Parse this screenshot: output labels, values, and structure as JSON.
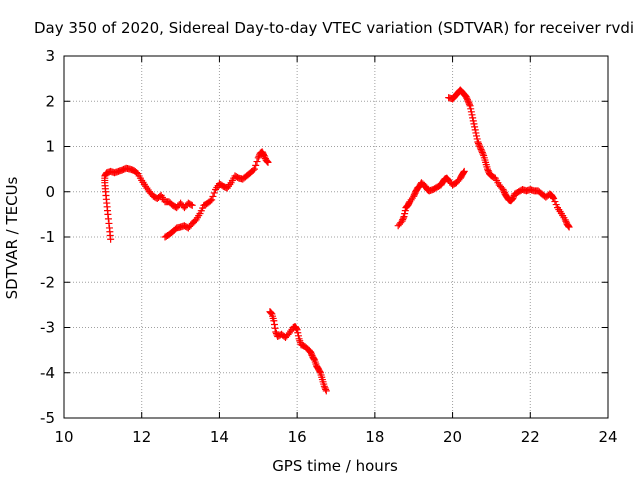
{
  "colors": {
    "series": "#ff0000",
    "grid": "#a0a0a0",
    "axis": "#000000"
  },
  "chart_data": {
    "type": "scatter",
    "title": "Day 350 of 2020, Sidereal Day-to-day VTEC variation (SDTVAR) for receiver rvdi",
    "xlabel": "GPS time / hours",
    "ylabel": "SDTVAR / TECUs",
    "xlim": [
      10,
      24
    ],
    "ylim": [
      -5,
      3
    ],
    "xticks": [
      10,
      12,
      14,
      16,
      18,
      20,
      22,
      24
    ],
    "yticks": [
      -5,
      -4,
      -3,
      -2,
      -1,
      0,
      1,
      2,
      3
    ],
    "grid": true,
    "marker": "plus",
    "series": [
      {
        "name": "SDTVAR",
        "segments": [
          [
            [
              11.2,
              -1.05
            ],
            [
              11.17,
              -0.8
            ],
            [
              11.13,
              -0.5
            ],
            [
              11.1,
              -0.25
            ],
            [
              11.07,
              0.0
            ],
            [
              11.05,
              0.2
            ],
            [
              11.05,
              0.35
            ],
            [
              11.1,
              0.42
            ],
            [
              11.2,
              0.45
            ],
            [
              11.3,
              0.42
            ],
            [
              11.4,
              0.45
            ],
            [
              11.5,
              0.48
            ],
            [
              11.6,
              0.52
            ],
            [
              11.7,
              0.5
            ],
            [
              11.8,
              0.47
            ],
            [
              11.9,
              0.4
            ],
            [
              12.0,
              0.25
            ],
            [
              12.1,
              0.12
            ],
            [
              12.2,
              0.0
            ],
            [
              12.3,
              -0.1
            ],
            [
              12.4,
              -0.15
            ],
            [
              12.5,
              -0.08
            ],
            [
              12.6,
              -0.22
            ],
            [
              12.7,
              -0.22
            ],
            [
              12.8,
              -0.3
            ],
            [
              12.9,
              -0.35
            ],
            [
              13.0,
              -0.25
            ],
            [
              13.1,
              -0.35
            ],
            [
              13.2,
              -0.25
            ],
            [
              13.3,
              -0.3
            ]
          ],
          [
            [
              12.6,
              -1.0
            ],
            [
              12.7,
              -0.95
            ],
            [
              12.8,
              -0.88
            ],
            [
              12.9,
              -0.8
            ],
            [
              13.0,
              -0.78
            ],
            [
              13.1,
              -0.75
            ],
            [
              13.2,
              -0.8
            ],
            [
              13.3,
              -0.7
            ],
            [
              13.4,
              -0.62
            ],
            [
              13.5,
              -0.48
            ],
            [
              13.6,
              -0.3
            ],
            [
              13.7,
              -0.25
            ],
            [
              13.8,
              -0.18
            ],
            [
              13.9,
              0.05
            ],
            [
              14.0,
              0.18
            ],
            [
              14.1,
              0.12
            ],
            [
              14.2,
              0.08
            ],
            [
              14.3,
              0.2
            ],
            [
              14.4,
              0.35
            ],
            [
              14.5,
              0.3
            ],
            [
              14.6,
              0.28
            ],
            [
              14.7,
              0.35
            ],
            [
              14.8,
              0.42
            ],
            [
              14.9,
              0.5
            ],
            [
              15.0,
              0.75
            ],
            [
              15.05,
              0.85
            ],
            [
              15.1,
              0.88
            ],
            [
              15.15,
              0.8
            ],
            [
              15.2,
              0.7
            ],
            [
              15.25,
              0.65
            ]
          ],
          [
            [
              15.3,
              -2.65
            ],
            [
              15.35,
              -2.7
            ],
            [
              15.4,
              -2.85
            ],
            [
              15.45,
              -3.1
            ],
            [
              15.5,
              -3.2
            ],
            [
              15.6,
              -3.15
            ],
            [
              15.7,
              -3.22
            ],
            [
              15.8,
              -3.12
            ],
            [
              15.9,
              -3.0
            ],
            [
              15.95,
              -2.98
            ],
            [
              16.0,
              -3.05
            ],
            [
              16.05,
              -3.25
            ],
            [
              16.1,
              -3.38
            ],
            [
              16.2,
              -3.42
            ],
            [
              16.3,
              -3.5
            ],
            [
              16.35,
              -3.55
            ],
            [
              16.4,
              -3.65
            ],
            [
              16.45,
              -3.72
            ],
            [
              16.5,
              -3.85
            ],
            [
              16.55,
              -3.92
            ],
            [
              16.6,
              -4.0
            ],
            [
              16.65,
              -4.15
            ],
            [
              16.7,
              -4.3
            ],
            [
              16.75,
              -4.4
            ]
          ],
          [
            [
              18.6,
              -0.75
            ],
            [
              18.7,
              -0.65
            ],
            [
              18.75,
              -0.55
            ],
            [
              18.8,
              -0.35
            ],
            [
              18.85,
              -0.3
            ],
            [
              18.9,
              -0.22
            ],
            [
              19.0,
              -0.1
            ],
            [
              19.05,
              0.0
            ],
            [
              19.1,
              0.08
            ],
            [
              19.15,
              0.12
            ],
            [
              19.2,
              0.2
            ],
            [
              19.3,
              0.12
            ],
            [
              19.35,
              0.05
            ],
            [
              19.4,
              0.02
            ],
            [
              19.5,
              0.05
            ],
            [
              19.6,
              0.1
            ],
            [
              19.7,
              0.15
            ],
            [
              19.75,
              0.22
            ],
            [
              19.8,
              0.28
            ],
            [
              19.85,
              0.3
            ],
            [
              19.9,
              0.25
            ],
            [
              20.0,
              0.15
            ],
            [
              20.1,
              0.2
            ],
            [
              20.2,
              0.3
            ],
            [
              20.25,
              0.38
            ],
            [
              20.3,
              0.45
            ]
          ],
          [
            [
              19.9,
              2.08
            ],
            [
              20.0,
              2.05
            ],
            [
              20.05,
              2.1
            ],
            [
              20.1,
              2.15
            ],
            [
              20.15,
              2.2
            ],
            [
              20.2,
              2.25
            ],
            [
              20.25,
              2.2
            ],
            [
              20.3,
              2.15
            ],
            [
              20.35,
              2.1
            ],
            [
              20.4,
              2.0
            ],
            [
              20.45,
              1.9
            ],
            [
              20.5,
              1.7
            ],
            [
              20.55,
              1.5
            ],
            [
              20.6,
              1.3
            ],
            [
              20.65,
              1.1
            ],
            [
              20.7,
              1.0
            ],
            [
              20.75,
              0.9
            ],
            [
              20.8,
              0.8
            ],
            [
              20.85,
              0.65
            ],
            [
              20.9,
              0.5
            ],
            [
              20.95,
              0.4
            ],
            [
              21.0,
              0.35
            ],
            [
              21.1,
              0.3
            ],
            [
              21.2,
              0.15
            ],
            [
              21.3,
              0.05
            ],
            [
              21.35,
              -0.05
            ],
            [
              21.4,
              -0.12
            ],
            [
              21.45,
              -0.18
            ],
            [
              21.5,
              -0.2
            ],
            [
              21.55,
              -0.15
            ],
            [
              21.6,
              -0.05
            ],
            [
              21.7,
              0.0
            ],
            [
              21.8,
              0.05
            ],
            [
              21.9,
              0.02
            ],
            [
              22.0,
              0.05
            ],
            [
              22.1,
              0.02
            ],
            [
              22.2,
              0.02
            ],
            [
              22.3,
              -0.05
            ],
            [
              22.4,
              -0.12
            ],
            [
              22.5,
              -0.05
            ],
            [
              22.55,
              -0.08
            ],
            [
              22.6,
              -0.15
            ],
            [
              22.7,
              -0.35
            ],
            [
              22.8,
              -0.48
            ],
            [
              22.9,
              -0.62
            ],
            [
              22.95,
              -0.72
            ],
            [
              23.0,
              -0.78
            ]
          ]
        ]
      }
    ]
  }
}
